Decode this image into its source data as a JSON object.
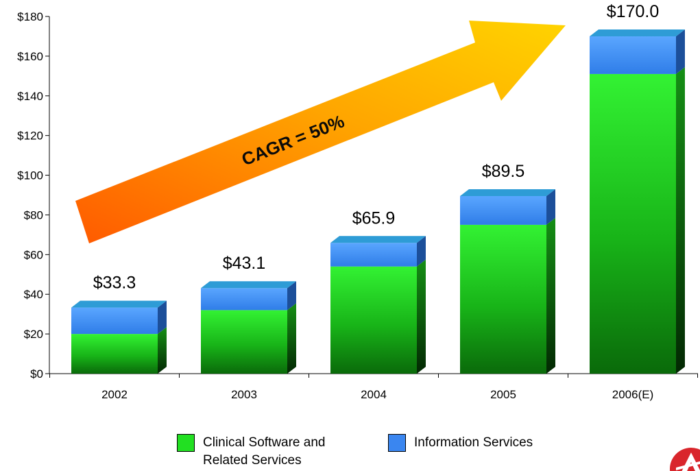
{
  "chart_data": {
    "type": "bar",
    "stacked": true,
    "categories": [
      "2002",
      "2003",
      "2004",
      "2005",
      "2006(E)"
    ],
    "series": [
      {
        "name": "Clinical Software and Related Services",
        "values": [
          20,
          32,
          54,
          75,
          151
        ]
      },
      {
        "name": "Information Services",
        "values": [
          13.3,
          11.1,
          11.9,
          14.5,
          19.0
        ]
      }
    ],
    "totals": [
      "$33.3",
      "$43.1",
      "$65.9",
      "$89.5",
      "$170.0"
    ],
    "y_ticks": [
      "$0",
      "$20",
      "$40",
      "$60",
      "$80",
      "$100",
      "$120",
      "$140",
      "$160",
      "$180"
    ],
    "ylim": [
      0,
      180
    ],
    "annotation": "CAGR = 50%",
    "legend_position": "bottom",
    "colors": {
      "clinical": "#22e022",
      "information": "#3a86f0",
      "arrow_start": "#ff6a00",
      "arrow_end": "#ffd000"
    }
  },
  "legend": {
    "items": [
      {
        "label": "Clinical Software and Related Services",
        "color": "#22e022"
      },
      {
        "label": "Information Services",
        "color": "#3a86f0"
      }
    ]
  }
}
